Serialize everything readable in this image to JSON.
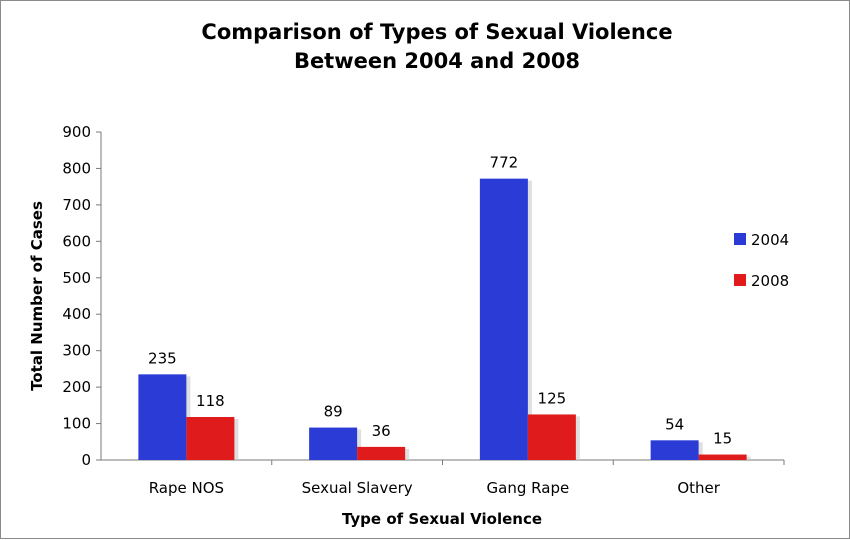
{
  "chart_data": {
    "type": "bar",
    "title_lines": [
      "Comparison of Types of Sexual Violence",
      "Between 2004 and 2008"
    ],
    "xlabel": "Type of Sexual Violence",
    "ylabel": "Total Number of Cases",
    "categories": [
      "Rape NOS",
      "Sexual Slavery",
      "Gang Rape",
      "Other"
    ],
    "series": [
      {
        "name": "2004",
        "color": "#2a3bd6",
        "values": [
          235,
          89,
          772,
          54
        ]
      },
      {
        "name": "2008",
        "color": "#e01b1b",
        "values": [
          118,
          36,
          125,
          15
        ]
      }
    ],
    "ylim": [
      0,
      900
    ],
    "yticks": [
      "0",
      "100",
      "200",
      "300",
      "400",
      "500",
      "600",
      "700",
      "800",
      "900"
    ],
    "grid": false,
    "legend_position": "right"
  }
}
